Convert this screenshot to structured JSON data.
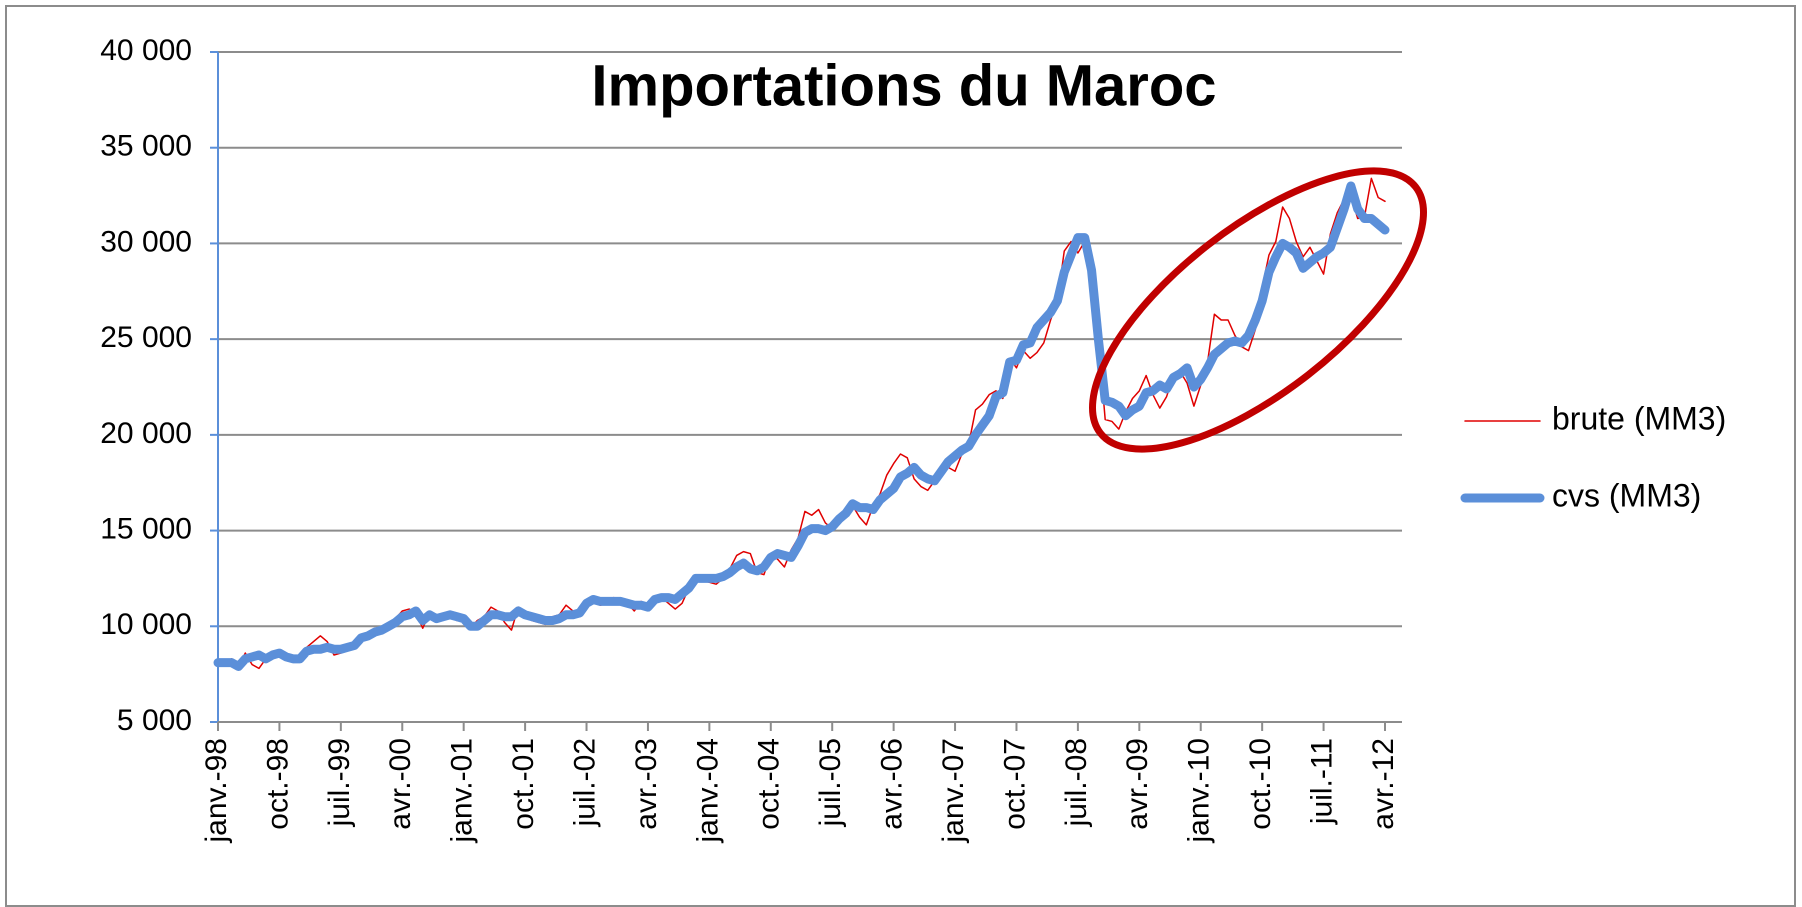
{
  "chart_data": {
    "type": "line",
    "title": "Importations du Maroc",
    "categories": [
      "janv.-98",
      null,
      null,
      null,
      null,
      null,
      null,
      null,
      null,
      "oct.-98",
      null,
      null,
      null,
      null,
      null,
      null,
      null,
      null,
      "juil.-99",
      null,
      null,
      null,
      null,
      null,
      null,
      null,
      null,
      "avr.-00",
      null,
      null,
      null,
      null,
      null,
      null,
      null,
      null,
      "janv.-01",
      null,
      null,
      null,
      null,
      null,
      null,
      null,
      null,
      "oct.-01",
      null,
      null,
      null,
      null,
      null,
      null,
      null,
      null,
      "juil.-02",
      null,
      null,
      null,
      null,
      null,
      null,
      null,
      null,
      "avr.-03",
      null,
      null,
      null,
      null,
      null,
      null,
      null,
      null,
      "janv.-04",
      null,
      null,
      null,
      null,
      null,
      null,
      null,
      null,
      "oct.-04",
      null,
      null,
      null,
      null,
      null,
      null,
      null,
      null,
      "juil.-05",
      null,
      null,
      null,
      null,
      null,
      null,
      null,
      null,
      "avr.-06",
      null,
      null,
      null,
      null,
      null,
      null,
      null,
      null,
      "janv.-07",
      null,
      null,
      null,
      null,
      null,
      null,
      null,
      null,
      "oct.-07",
      null,
      null,
      null,
      null,
      null,
      null,
      null,
      null,
      "juil.-08",
      null,
      null,
      null,
      null,
      null,
      null,
      null,
      null,
      "avr.-09",
      null,
      null,
      null,
      null,
      null,
      null,
      null,
      null,
      "janv.-10",
      null,
      null,
      null,
      null,
      null,
      null,
      null,
      null,
      "oct.-10",
      null,
      null,
      null,
      null,
      null,
      null,
      null,
      null,
      "juil.-11",
      null,
      null,
      null,
      null,
      null,
      null,
      null,
      null,
      "avr.-12"
    ],
    "series": [
      {
        "name": "brute (MM3)",
        "color": "#e00000",
        "width": 1.5,
        "values": [
          8000,
          8000,
          8300,
          7900,
          8600,
          8000,
          7800,
          8300,
          8700,
          8600,
          8300,
          8200,
          8400,
          8900,
          9200,
          9500,
          9200,
          8500,
          8600,
          9000,
          9200,
          9400,
          9700,
          9900,
          9700,
          10000,
          10400,
          10800,
          10900,
          10700,
          9900,
          10700,
          10400,
          10400,
          10700,
          10300,
          10300,
          9900,
          10300,
          10500,
          11000,
          10800,
          10200,
          9800,
          11000,
          10600,
          10300,
          10200,
          10100,
          10500,
          10600,
          11100,
          10800,
          10500,
          10900,
          11500,
          11100,
          11200,
          11500,
          11200,
          11200,
          10800,
          11300,
          11000,
          11200,
          11500,
          11200,
          10900,
          11200,
          12000,
          12400,
          12400,
          12300,
          12200,
          12500,
          13000,
          13700,
          13900,
          13800,
          12800,
          12700,
          13800,
          13500,
          13100,
          14000,
          14600,
          16000,
          15800,
          16100,
          15400,
          15100,
          15800,
          16100,
          16300,
          15700,
          15300,
          16300,
          16900,
          17900,
          18500,
          19000,
          18800,
          17700,
          17300,
          17100,
          17600,
          18000,
          18300,
          18100,
          19000,
          19500,
          21300,
          21600,
          22100,
          22300,
          21900,
          24000,
          23500,
          24400,
          24000,
          24300,
          24800,
          26000,
          27000,
          29600,
          30100,
          29500,
          30100,
          28300,
          25000,
          20800,
          20700,
          20300,
          21200,
          21900,
          22300,
          23100,
          22100,
          21400,
          22000,
          23100,
          23300,
          22700,
          21500,
          22600,
          23800,
          26300,
          26000,
          26000,
          25200,
          24600,
          24400,
          25500,
          27700,
          29400,
          30100,
          31900,
          31300,
          30100,
          29300,
          29800,
          29100,
          28400,
          30500,
          31600,
          32300,
          32500,
          31300,
          31400,
          33400,
          32400,
          32200
        ]
      },
      {
        "name": "cvs (MM3)",
        "color": "#5b8fd9",
        "width": 9,
        "values": [
          8100,
          8100,
          8100,
          7900,
          8300,
          8400,
          8500,
          8300,
          8500,
          8600,
          8400,
          8300,
          8300,
          8700,
          8800,
          8800,
          8900,
          8800,
          8800,
          8900,
          9000,
          9400,
          9500,
          9700,
          9800,
          10000,
          10200,
          10500,
          10600,
          10800,
          10300,
          10600,
          10400,
          10500,
          10600,
          10500,
          10400,
          10000,
          10000,
          10300,
          10600,
          10600,
          10500,
          10500,
          10800,
          10600,
          10500,
          10400,
          10300,
          10300,
          10400,
          10600,
          10600,
          10700,
          11200,
          11400,
          11300,
          11300,
          11300,
          11300,
          11200,
          11100,
          11100,
          11000,
          11400,
          11500,
          11500,
          11400,
          11700,
          12000,
          12500,
          12500,
          12500,
          12500,
          12600,
          12800,
          13100,
          13300,
          13000,
          12900,
          13100,
          13600,
          13800,
          13700,
          13600,
          14200,
          14900,
          15100,
          15100,
          15000,
          15200,
          15600,
          15900,
          16400,
          16200,
          16200,
          16100,
          16600,
          16900,
          17200,
          17800,
          18000,
          18300,
          17900,
          17700,
          17600,
          18100,
          18600,
          18900,
          19200,
          19400,
          20000,
          20500,
          21000,
          22000,
          22200,
          23800,
          23900,
          24700,
          24800,
          25600,
          26000,
          26400,
          27000,
          28500,
          29400,
          30300,
          30300,
          28600,
          25000,
          21800,
          21700,
          21500,
          21000,
          21300,
          21500,
          22200,
          22300,
          22600,
          22400,
          23000,
          23200,
          23500,
          22500,
          22900,
          23500,
          24200,
          24500,
          24800,
          24900,
          24800,
          25200,
          26000,
          27000,
          28500,
          29300,
          30000,
          29800,
          29500,
          28700,
          29000,
          29300,
          29500,
          29800,
          30800,
          31800,
          33000,
          31800,
          31300,
          31300,
          31000,
          30700
        ]
      }
    ],
    "ylim": [
      5000,
      40000
    ],
    "yticks": [
      {
        "value": 5000,
        "label": "5 000"
      },
      {
        "value": 10000,
        "label": "10 000"
      },
      {
        "value": 15000,
        "label": "15 000"
      },
      {
        "value": 20000,
        "label": "20 000"
      },
      {
        "value": 25000,
        "label": "25 000"
      },
      {
        "value": 30000,
        "label": "30 000"
      },
      {
        "value": 35000,
        "label": "35 000"
      },
      {
        "value": 40000,
        "label": "40 000"
      }
    ],
    "grid": true,
    "legend": "right"
  }
}
